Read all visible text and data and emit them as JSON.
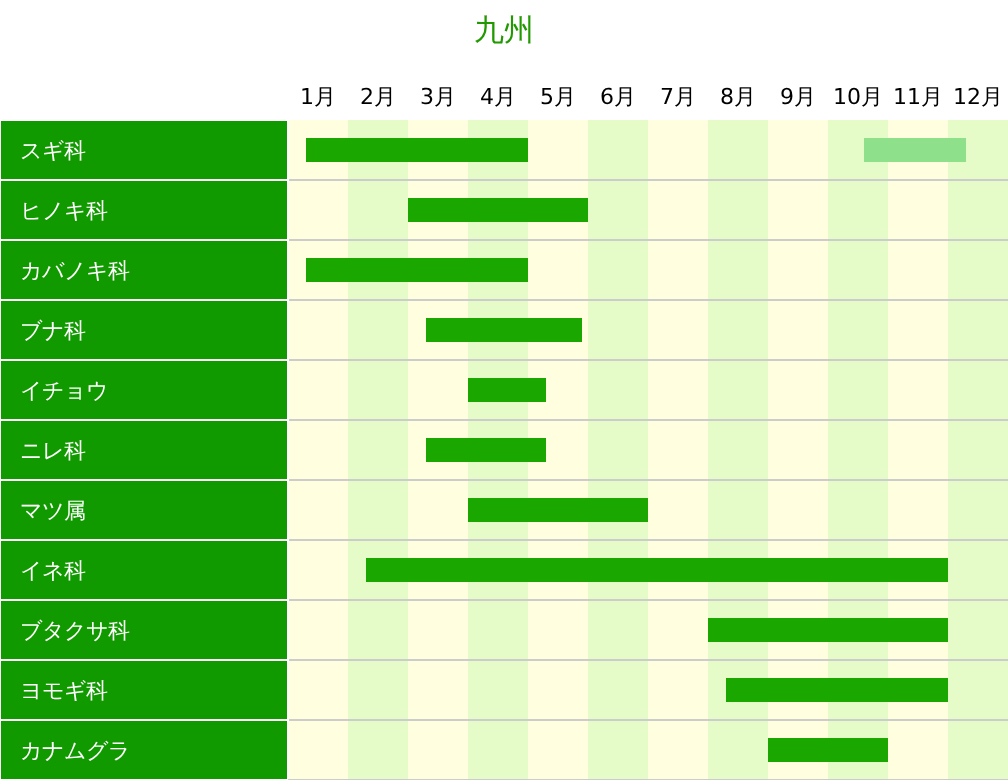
{
  "chart_data": {
    "type": "bar",
    "orientation": "horizontal",
    "title": "九州",
    "categories": [
      "スギ科",
      "ヒノキ科",
      "カバノキ科",
      "ブナ科",
      "イチョウ",
      "ニレ科",
      "マツ属",
      "イネ科",
      "ブタクサ科",
      "ヨモギ科",
      "カナムグラ"
    ],
    "series": [
      {
        "color": "#1aa800",
        "base": [
          0.3,
          2.0,
          0.3,
          2.3,
          3.0,
          2.3,
          3.0,
          1.3,
          7.0,
          7.3,
          8.0
        ],
        "values": [
          3.7,
          3.0,
          3.7,
          2.6,
          1.3,
          2.0,
          3.0,
          9.7,
          4.0,
          3.7,
          2.0
        ]
      },
      {
        "color": "#8ee08a",
        "base": [
          9.6,
          null,
          null,
          null,
          null,
          null,
          null,
          null,
          null,
          null,
          null
        ],
        "values": [
          1.7,
          null,
          null,
          null,
          null,
          null,
          null,
          null,
          null,
          null,
          null
        ]
      }
    ],
    "bands": [
      {
        "axis": "x",
        "from": 0,
        "to": 1,
        "color": "#ffffe0"
      },
      {
        "axis": "x",
        "from": 1,
        "to": 2,
        "color": "#e6fcc8"
      },
      {
        "axis": "x",
        "from": 2,
        "to": 3,
        "color": "#ffffe0"
      },
      {
        "axis": "x",
        "from": 3,
        "to": 4,
        "color": "#e6fcc8"
      },
      {
        "axis": "x",
        "from": 4,
        "to": 5,
        "color": "#ffffe0"
      },
      {
        "axis": "x",
        "from": 5,
        "to": 6,
        "color": "#e6fcc8"
      },
      {
        "axis": "x",
        "from": 6,
        "to": 7,
        "color": "#ffffe0"
      },
      {
        "axis": "x",
        "from": 7,
        "to": 8,
        "color": "#e6fcc8"
      },
      {
        "axis": "x",
        "from": 8,
        "to": 9,
        "color": "#ffffe0"
      },
      {
        "axis": "x",
        "from": 9,
        "to": 10,
        "color": "#e6fcc8"
      },
      {
        "axis": "x",
        "from": 10,
        "to": 11,
        "color": "#ffffe0"
      },
      {
        "axis": "x",
        "from": 11,
        "to": 12,
        "color": "#e6fcc8"
      }
    ],
    "xlim": [
      0,
      12
    ],
    "xticks": [
      {
        "value": 0.5,
        "label": "1月"
      },
      {
        "value": 1.5,
        "label": "2月"
      },
      {
        "value": 2.5,
        "label": "3月"
      },
      {
        "value": 3.5,
        "label": "4月"
      },
      {
        "value": 4.5,
        "label": "5月"
      },
      {
        "value": 5.5,
        "label": "6月"
      },
      {
        "value": 6.5,
        "label": "7月"
      },
      {
        "value": 7.5,
        "label": "8月"
      },
      {
        "value": 8.5,
        "label": "9月"
      },
      {
        "value": 9.5,
        "label": "10月"
      },
      {
        "value": 10.5,
        "label": "11月"
      },
      {
        "value": 11.5,
        "label": "12月"
      }
    ]
  }
}
